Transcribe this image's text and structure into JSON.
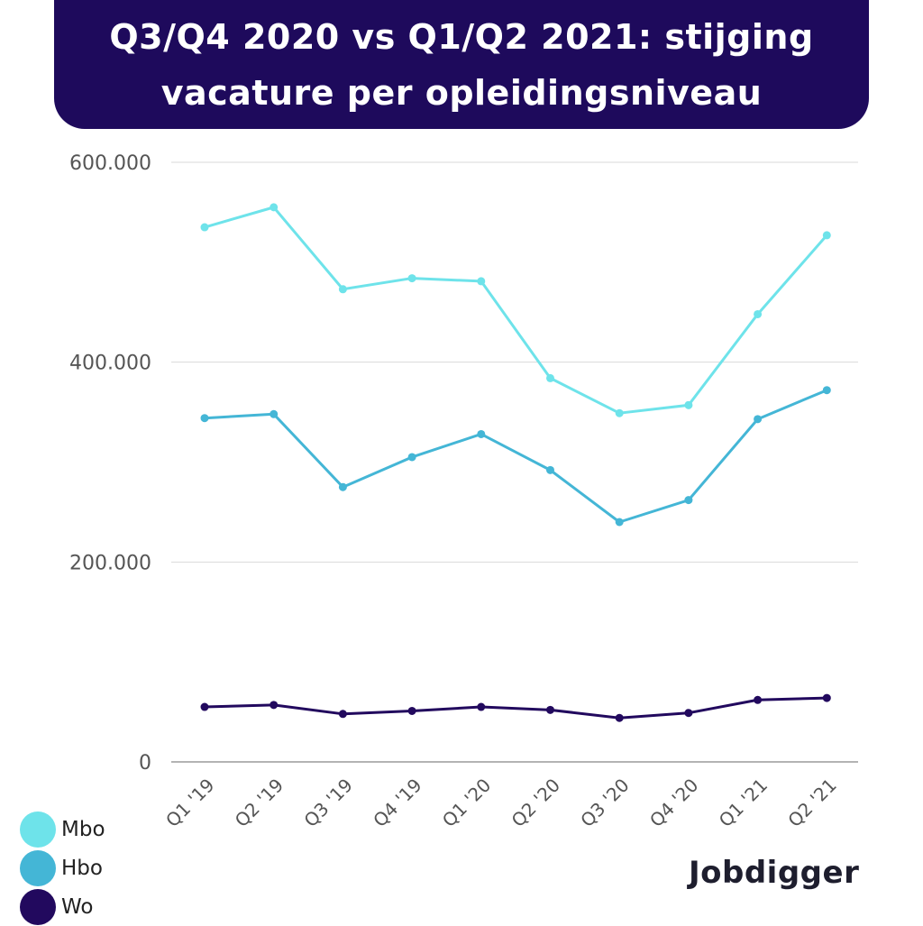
{
  "header": {
    "title_line1": "Q3/Q4 2020 vs Q1/Q2 2021: stijging",
    "title_line2": "vacature per opleidingsniveau"
  },
  "brand": {
    "logo_text": "Jobdigger"
  },
  "colors": {
    "banner": "#1e0a5c",
    "mbo": "#6ee3ea",
    "hbo": "#44b6d6",
    "wo": "#22095e",
    "grid": "#d9d9d9",
    "axis_text": "#555555"
  },
  "legend": [
    {
      "label": "Mbo",
      "color": "#6ee3ea"
    },
    {
      "label": "Hbo",
      "color": "#44b6d6"
    },
    {
      "label": "Wo",
      "color": "#22095e"
    }
  ],
  "chart_data": {
    "type": "line",
    "title": "Q3/Q4 2020 vs Q1/Q2 2021: stijging vacature per opleidingsniveau",
    "categories": [
      "Q1 '19",
      "Q2 '19",
      "Q3 '19",
      "Q4 '19",
      "Q1 '20",
      "Q2 '20",
      "Q3 '20",
      "Q4 '20",
      "Q1 '21",
      "Q2 '21"
    ],
    "series": [
      {
        "name": "Mbo",
        "color": "#6ee3ea",
        "values": [
          535000,
          555000,
          473000,
          484000,
          481000,
          384000,
          349000,
          357000,
          448000,
          527000
        ]
      },
      {
        "name": "Hbo",
        "color": "#44b6d6",
        "values": [
          344000,
          348000,
          275000,
          305000,
          328000,
          292000,
          240000,
          262000,
          343000,
          372000
        ]
      },
      {
        "name": "Wo",
        "color": "#22095e",
        "values": [
          55000,
          57000,
          48000,
          51000,
          55000,
          52000,
          44000,
          49000,
          62000,
          64000
        ]
      }
    ],
    "ylim": [
      0,
      600000
    ],
    "y_ticks": [
      0,
      200000,
      400000,
      600000
    ],
    "y_tick_labels": [
      "0",
      "200.000",
      "400.000",
      "600.000"
    ],
    "grid": true,
    "legend_position": "bottom-left"
  }
}
